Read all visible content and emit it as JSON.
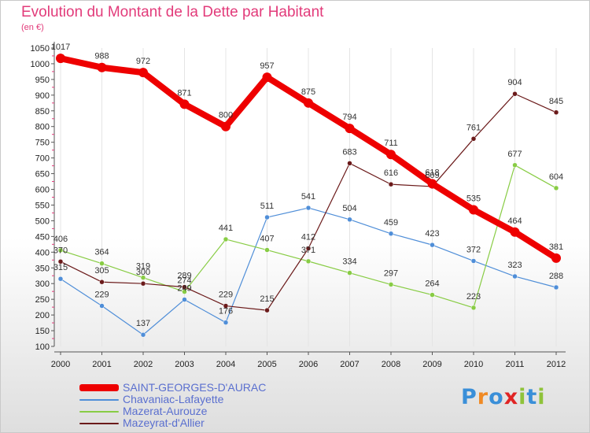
{
  "header": {
    "title": "Evolution du Montant de la Dette par Habitant",
    "subtitle": "(en €)"
  },
  "colors": {
    "title": "#e23b7a",
    "legend_text": "#5a6fcf",
    "axis": "#555555",
    "gridline": "#e4e4e4"
  },
  "brand": {
    "letters": [
      "P",
      "r",
      "o",
      "x",
      "i",
      "t",
      "i"
    ],
    "colors": [
      "#3a8fd8",
      "#f08a24",
      "#3a8fd8",
      "#e02424",
      "#8fc33a",
      "#3a8fd8",
      "#8fc33a"
    ]
  },
  "chart_data": {
    "type": "line",
    "title": "Evolution du Montant de la Dette par Habitant",
    "ylabel": "(en €)",
    "xlabel": "",
    "x": [
      "2000",
      "2001",
      "2002",
      "2003",
      "2004",
      "2005",
      "2006",
      "2007",
      "2008",
      "2009",
      "2010",
      "2011",
      "2012"
    ],
    "ylim": [
      100,
      1050
    ],
    "yticks": [
      100,
      150,
      200,
      250,
      300,
      350,
      400,
      450,
      500,
      550,
      600,
      650,
      700,
      750,
      800,
      850,
      900,
      950,
      1000,
      1050
    ],
    "grid": false,
    "legend_position": "bottom-left",
    "series": [
      {
        "name": "SAINT-GEORGES-D'AURAC",
        "color": "#ee0000",
        "values": [
          1017,
          988,
          972,
          871,
          800,
          957,
          875,
          794,
          711,
          618,
          535,
          464,
          381
        ],
        "labels": [
          "1017",
          "988",
          "972",
          "871",
          "800",
          "957",
          "875",
          "794",
          "711",
          "618",
          "535",
          "464",
          "381"
        ]
      },
      {
        "name": "Chavaniac-Lafayette",
        "color": "#4f8ed8",
        "values": [
          315,
          229,
          137,
          249,
          176,
          511,
          541,
          504,
          459,
          423,
          372,
          323,
          288
        ],
        "labels": [
          "315",
          "229",
          "137",
          "249",
          "176",
          "511",
          "541",
          "504",
          "459",
          "423",
          "372",
          "323",
          "288"
        ]
      },
      {
        "name": "Mazerat-Aurouze",
        "color": "#88cc44",
        "values": [
          406,
          364,
          319,
          274,
          441,
          407,
          371,
          334,
          297,
          264,
          223,
          677,
          604
        ],
        "labels": [
          "406",
          "364",
          "319",
          "274",
          "441",
          "407",
          "371",
          "334",
          "297",
          "264",
          "223",
          "677",
          "604"
        ]
      },
      {
        "name": "Mazeyrat-d'Allier",
        "color": "#6b1a1a",
        "values": [
          370,
          305,
          300,
          289,
          229,
          215,
          412,
          683,
          616,
          609,
          761,
          904,
          845
        ],
        "labels": [
          "370",
          "305",
          "300",
          "289",
          "229",
          "215",
          "412",
          "683",
          "616",
          "609",
          "761",
          "904",
          "845"
        ]
      }
    ]
  }
}
